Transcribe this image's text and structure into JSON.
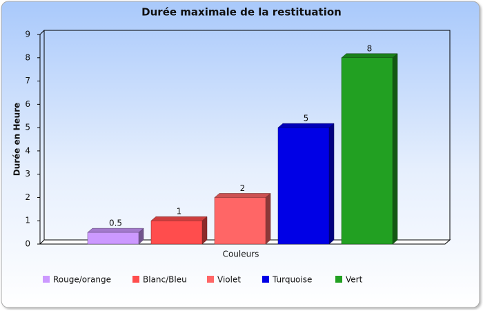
{
  "chart_data": {
    "type": "bar",
    "title": "Durée maximale de la restituation",
    "y_label": "Durée en Heure",
    "x_label": "Couleurs",
    "categories": [
      null
    ],
    "series": [
      {
        "name": "Rouge/orange",
        "color": "#cc99ff",
        "values": [
          0.5
        ]
      },
      {
        "name": "Blanc/Bleu",
        "color": "#ff4d4d",
        "values": [
          1
        ]
      },
      {
        "name": "Violet",
        "color": "#ff6666",
        "values": [
          2
        ]
      },
      {
        "name": "Turquoise",
        "color": "#0000e6",
        "values": [
          5
        ]
      },
      {
        "name": "Vert",
        "color": "#22a022",
        "values": [
          8
        ]
      }
    ],
    "ylim": [
      0,
      9
    ],
    "yticks": [
      0,
      1,
      2,
      3,
      4,
      5,
      6,
      7,
      8,
      9
    ],
    "grid": false,
    "legend": "bottom"
  }
}
